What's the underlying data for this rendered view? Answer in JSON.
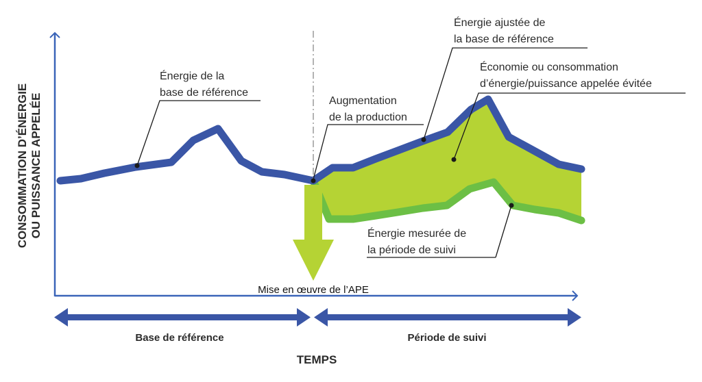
{
  "axes": {
    "y_label_line1": "CONSOMMATION D’ÉNERGIE",
    "y_label_line2": "OU PUISSANCE APPELÉE",
    "x_label": "TEMPS"
  },
  "phases": {
    "baseline": "Base de référence",
    "monitoring": "Période de suivi"
  },
  "annotations": {
    "baseline_energy": [
      "Énergie de la",
      "base de référence"
    ],
    "production_increase": [
      "Augmentation",
      "de la production"
    ],
    "adjusted_baseline": [
      "Énergie ajustée de",
      "la base de référence"
    ],
    "savings": [
      "Économie ou consommation",
      "d’énergie/puissance appelée évitée"
    ],
    "measured_energy": [
      "Énergie mesurée de",
      "la période de suivi"
    ],
    "implementation": "Mise en œuvre de l’APE"
  },
  "colors": {
    "axis": "#3a64b8",
    "baseline_line": "#3a56a6",
    "measured_line": "#6cbf45",
    "savings_fill": "#b5d334",
    "arrow": "#b5d334",
    "callout": "#1a1a1a"
  }
}
